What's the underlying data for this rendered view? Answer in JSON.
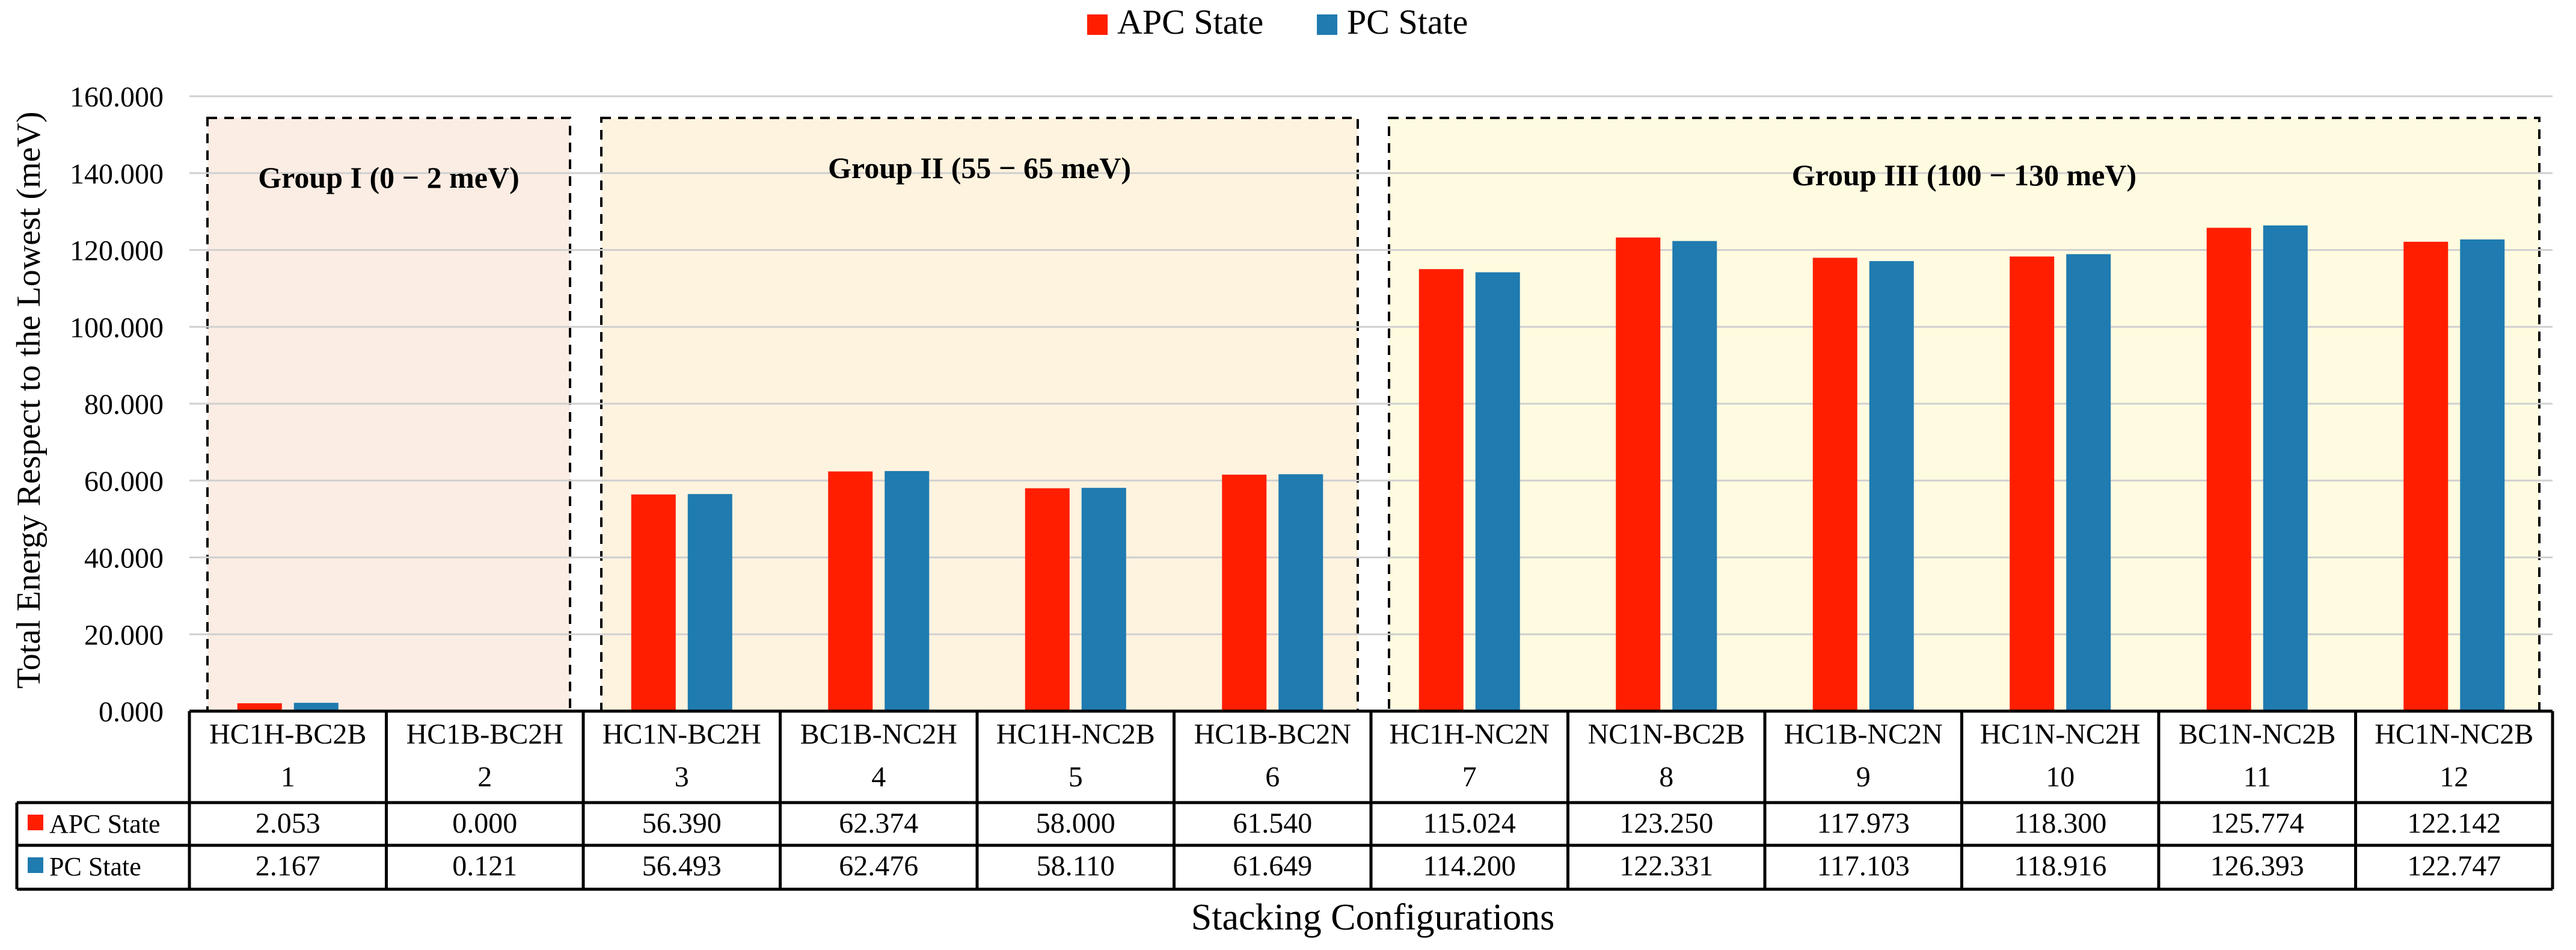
{
  "colors": {
    "apc": "#ff1e00",
    "pc": "#1f7bb0",
    "grid": "#d0d0d0",
    "group1_bg": "#fbede4",
    "group2_bg": "#fdf3df",
    "group3_bg": "#fefbe0"
  },
  "chart_data": {
    "type": "bar",
    "title": "",
    "xlabel": "Stacking Configurations",
    "ylabel": "Total Energy Respect to the Lowest (meV)",
    "ylim": [
      0,
      160
    ],
    "yticks": [
      "0.000",
      "20.000",
      "40.000",
      "60.000",
      "80.000",
      "100.000",
      "120.000",
      "140.000",
      "160.000"
    ],
    "legend_position": "top-center",
    "categories": [
      "HC1H-BC2B",
      "HC1B-BC2H",
      "HC1N-BC2H",
      "BC1B-NC2H",
      "HC1H-NC2B",
      "HC1B-BC2N",
      "HC1H-NC2N",
      "NC1N-BC2B",
      "HC1B-NC2N",
      "HC1N-NC2H",
      "BC1N-NC2B",
      "HC1N-NC2B"
    ],
    "indices": [
      "1",
      "2",
      "3",
      "4",
      "5",
      "6",
      "7",
      "8",
      "9",
      "10",
      "11",
      "12"
    ],
    "series": [
      {
        "name": "APC State",
        "values": [
          2.053,
          0.0,
          56.39,
          62.374,
          58.0,
          61.54,
          115.024,
          123.25,
          117.973,
          118.3,
          125.774,
          122.142
        ],
        "labels": [
          "2.053",
          "0.000",
          "56.390",
          "62.374",
          "58.000",
          "61.540",
          "115.024",
          "123.250",
          "117.973",
          "118.300",
          "125.774",
          "122.142"
        ]
      },
      {
        "name": "PC State",
        "values": [
          2.167,
          0.121,
          56.493,
          62.476,
          58.11,
          61.649,
          114.2,
          122.331,
          117.103,
          118.916,
          126.393,
          122.747
        ],
        "labels": [
          "2.167",
          "0.121",
          "56.493",
          "62.476",
          "58.110",
          "61.649",
          "114.200",
          "122.331",
          "117.103",
          "118.916",
          "126.393",
          "122.747"
        ]
      }
    ],
    "groups": [
      {
        "label": "Group I (0 − 2 meV)",
        "first": 1,
        "last": 2
      },
      {
        "label": "Group II (55 − 65 meV)",
        "first": 3,
        "last": 6
      },
      {
        "label": "Group III (100 − 130 meV)",
        "first": 7,
        "last": 12
      }
    ]
  }
}
